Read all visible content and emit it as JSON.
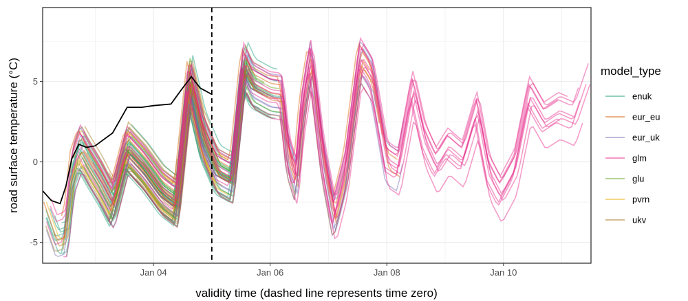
{
  "chart_data": {
    "type": "line",
    "xlabel": "validity time (dashed line represents time zero)",
    "ylabel": "road surface temperature (°C)",
    "x_unit": "date (January)",
    "xlim": [
      2.1,
      11.5
    ],
    "ylim": [
      -6.3,
      9.6
    ],
    "x_ticks": [
      {
        "value": 4,
        "label": "Jan 04"
      },
      {
        "value": 6,
        "label": "Jan 06"
      },
      {
        "value": 8,
        "label": "Jan 08"
      },
      {
        "value": 10,
        "label": "Jan 10"
      }
    ],
    "y_ticks": [
      {
        "value": -5,
        "label": "-5"
      },
      {
        "value": 0,
        "label": "0"
      },
      {
        "value": 5,
        "label": "5"
      }
    ],
    "grid": true,
    "time_zero": 5.0,
    "legend": {
      "title": "model_type",
      "placement": "right",
      "entries": [
        {
          "name": "enuk",
          "color": "#1B9E77"
        },
        {
          "name": "eur_eu",
          "color": "#D95F02"
        },
        {
          "name": "eur_uk",
          "color": "#7570B3"
        },
        {
          "name": "glm",
          "color": "#E7298A"
        },
        {
          "name": "glu",
          "color": "#66A61E"
        },
        {
          "name": "pvrn",
          "color": "#E6AB02"
        },
        {
          "name": "ukv",
          "color": "#A6761D"
        }
      ]
    },
    "observed": {
      "color": "#000000",
      "points": [
        [
          2.1,
          -1.8
        ],
        [
          2.25,
          -2.4
        ],
        [
          2.4,
          -2.6
        ],
        [
          2.5,
          -1.5
        ],
        [
          2.6,
          0.2
        ],
        [
          2.72,
          1.1
        ],
        [
          2.85,
          0.9
        ],
        [
          3.0,
          1.0
        ],
        [
          3.3,
          1.8
        ],
        [
          3.55,
          3.4
        ],
        [
          3.8,
          3.4
        ],
        [
          4.0,
          3.5
        ],
        [
          4.3,
          3.6
        ],
        [
          4.5,
          4.6
        ],
        [
          4.65,
          5.3
        ],
        [
          4.8,
          4.6
        ],
        [
          5.0,
          4.2
        ]
      ]
    },
    "series": [
      {
        "name": "ukv",
        "color": "#A6761D",
        "start": 2.1,
        "end": 5.0,
        "count": 18
      },
      {
        "name": "enuk",
        "color": "#1B9E77",
        "start": 2.1,
        "end": 6.3,
        "count": 22
      },
      {
        "name": "glu",
        "color": "#66A61E",
        "start": 2.1,
        "end": 6.5,
        "count": 6
      },
      {
        "name": "pvrn",
        "color": "#E6AB02",
        "start": 2.1,
        "end": 5.5,
        "count": 6
      },
      {
        "name": "eur_eu",
        "color": "#D95F02",
        "start": 2.1,
        "end": 8.3,
        "count": 6
      },
      {
        "name": "eur_uk",
        "color": "#7570B3",
        "start": 2.1,
        "end": 8.4,
        "count": 5
      },
      {
        "name": "glm",
        "color": "#E7298A",
        "start": 2.1,
        "end": 11.5,
        "count": 10
      }
    ],
    "profile": [
      [
        2.1,
        -2.0
      ],
      [
        2.35,
        -4.6
      ],
      [
        2.5,
        -4.4
      ],
      [
        2.62,
        -0.4
      ],
      [
        2.75,
        1.0
      ],
      [
        2.9,
        0.0
      ],
      [
        3.1,
        -1.2
      ],
      [
        3.3,
        -2.6
      ],
      [
        3.55,
        0.9
      ],
      [
        3.85,
        -0.3
      ],
      [
        4.15,
        -1.8
      ],
      [
        4.4,
        -2.5
      ],
      [
        4.62,
        5.2
      ],
      [
        4.85,
        1.6
      ],
      [
        5.1,
        -0.5
      ],
      [
        5.35,
        -1.0
      ],
      [
        5.55,
        6.1
      ],
      [
        5.7,
        4.9
      ],
      [
        6.0,
        4.3
      ],
      [
        6.2,
        4.2
      ],
      [
        6.3,
        0.6
      ],
      [
        6.45,
        -1.2
      ],
      [
        6.55,
        3.0
      ],
      [
        6.7,
        6.4
      ],
      [
        6.9,
        0.4
      ],
      [
        7.1,
        -3.5
      ],
      [
        7.3,
        -0.6
      ],
      [
        7.55,
        6.4
      ],
      [
        7.75,
        5.2
      ],
      [
        8.0,
        0.0
      ],
      [
        8.2,
        -0.5
      ],
      [
        8.45,
        4.4
      ],
      [
        8.65,
        1.2
      ],
      [
        8.85,
        -0.4
      ],
      [
        9.05,
        0.8
      ],
      [
        9.3,
        0.0
      ],
      [
        9.55,
        3.1
      ],
      [
        9.75,
        -0.8
      ],
      [
        9.95,
        -2.2
      ],
      [
        10.2,
        -0.5
      ],
      [
        10.45,
        4.0
      ],
      [
        10.7,
        2.4
      ],
      [
        10.95,
        3.0
      ],
      [
        11.2,
        2.6
      ],
      [
        11.5,
        5.8
      ]
    ]
  }
}
